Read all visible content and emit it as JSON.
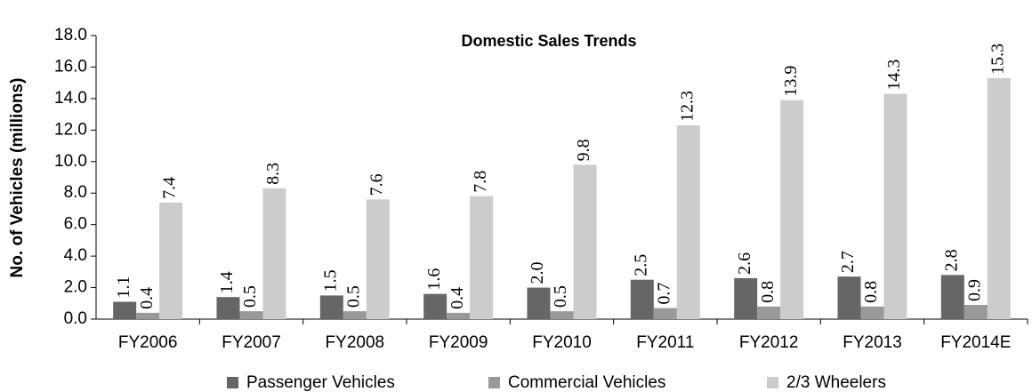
{
  "chart_data": {
    "type": "bar",
    "title": "Domestic Sales Trends",
    "y_label": "No. of Vehicles (millions)",
    "categories": [
      "FY2006",
      "FY2007",
      "FY2008",
      "FY2009",
      "FY2010",
      "FY2011",
      "FY2012",
      "FY2013",
      "FY2014E"
    ],
    "series": [
      {
        "name": "Passenger Vehicles",
        "color": "#666666",
        "values": [
          1.1,
          1.4,
          1.5,
          1.6,
          2,
          2.5,
          2.6,
          2.7,
          2.8
        ],
        "value_labels": [
          "1.1",
          "1.4",
          "1.5",
          "1.6",
          "2.0",
          "2.5",
          "2.6",
          "2.7",
          "2.8"
        ]
      },
      {
        "name": "Commercial Vehicles",
        "color": "#999999",
        "values": [
          0.4,
          0.5,
          0.5,
          0.4,
          0.5,
          0.7,
          0.8,
          0.8,
          0.9
        ],
        "value_labels": [
          "0.4",
          "0.5",
          "0.5",
          "0.4",
          "0.5",
          "0.7",
          "0.8",
          "0.8",
          "0.9"
        ]
      },
      {
        "name": "2/3 Wheelers",
        "color": "#cccccc",
        "values": [
          7.4,
          8.3,
          7.6,
          7.8,
          9.8,
          12.3,
          13.9,
          14.3,
          15.3
        ],
        "value_labels": [
          "7.4",
          "8.3",
          "7.6",
          "7.8",
          "9.8",
          "12.3",
          "13.9",
          "14.3",
          "15.3"
        ]
      }
    ],
    "ylim": [
      0,
      18
    ],
    "yticks": [
      {
        "value": 0,
        "label": "0.0"
      },
      {
        "value": 2,
        "label": "2.0"
      },
      {
        "value": 4,
        "label": "4.0"
      },
      {
        "value": 6,
        "label": "6.0"
      },
      {
        "value": 8,
        "label": "8.0"
      },
      {
        "value": 10,
        "label": "10.0"
      },
      {
        "value": 12,
        "label": "12.0"
      },
      {
        "value": 14,
        "label": "14.0"
      },
      {
        "value": 16,
        "label": "16.0"
      },
      {
        "value": 18,
        "label": "18.0"
      }
    ],
    "grid": false,
    "legend": "bottom"
  }
}
